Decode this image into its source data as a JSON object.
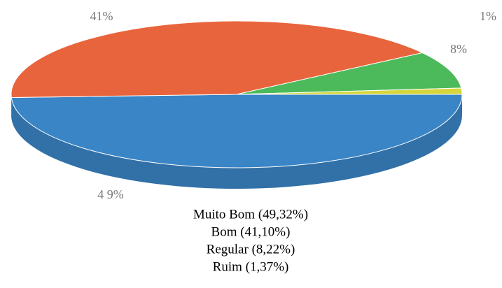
{
  "chart_data": {
    "type": "pie",
    "categories": [
      "Muito Bom (49,32%)",
      "Bom (41,10%)",
      "Regular (8,22%)",
      "Ruim (1,37%)"
    ],
    "values": [
      49.32,
      41.1,
      8.22,
      1.37
    ],
    "value_labels": [
      "4 9%",
      "41%",
      "8%",
      "1%"
    ],
    "colors": [
      "#3a85c6",
      "#e8643c",
      "#4cba5a",
      "#d6d63a"
    ],
    "legend": "bottom"
  }
}
